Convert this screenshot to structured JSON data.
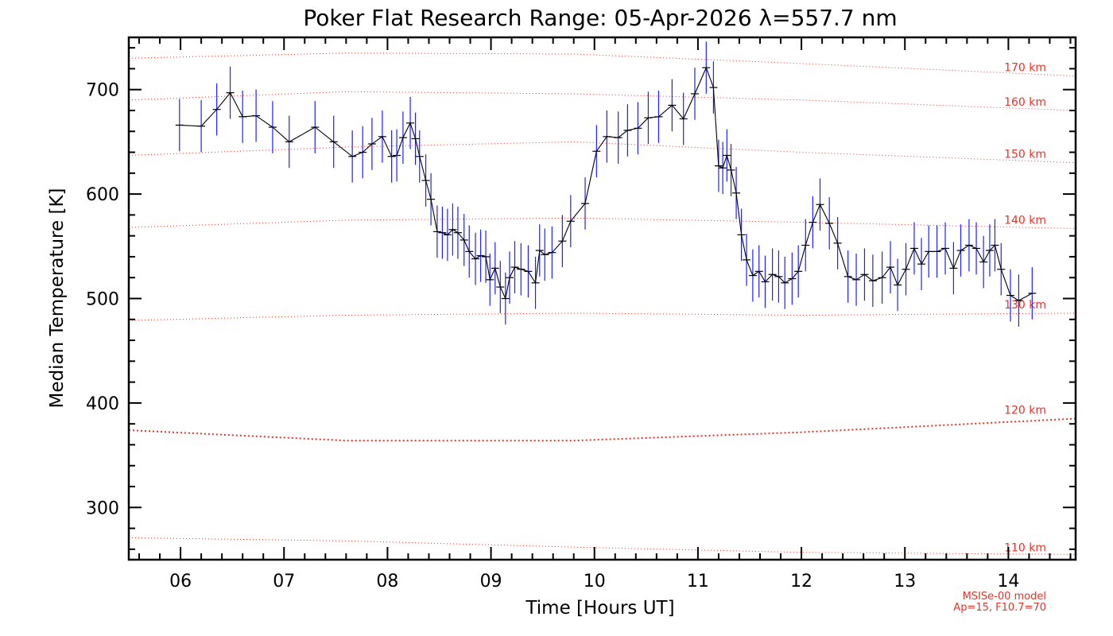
{
  "chart_data": {
    "type": "line",
    "title": "Poker Flat Research Range: 05-Apr-2026 λ=557.7 nm",
    "xlabel": "Time [Hours UT]",
    "ylabel": "Median Temperature [K]",
    "xlim": [
      5.5,
      14.65
    ],
    "ylim": [
      250,
      750
    ],
    "x_tick_labels": [
      "06",
      "07",
      "08",
      "09",
      "10",
      "11",
      "12",
      "13",
      "14"
    ],
    "x_ticks": [
      6,
      7,
      8,
      9,
      10,
      11,
      12,
      13,
      14
    ],
    "y_ticks": [
      300,
      400,
      500,
      600,
      700
    ],
    "grid": false,
    "colors": {
      "data_line": "#000000",
      "error_bars": "#1f1fff",
      "model_lines": "#e8332a",
      "axes": "#000000"
    },
    "series": [
      {
        "x": [
          5.99,
          6.2,
          6.35,
          6.48,
          6.6,
          6.73,
          6.89,
          7.05,
          7.3,
          7.48,
          7.66,
          7.76,
          7.85,
          7.95,
          8.04,
          8.09,
          8.15,
          8.22,
          8.27,
          8.31,
          8.37,
          8.42,
          8.48,
          8.53,
          8.58,
          8.63,
          8.68,
          8.74,
          8.79,
          8.85,
          8.9,
          8.95,
          8.99,
          9.04,
          9.09,
          9.14,
          9.18,
          9.23,
          9.29,
          9.36,
          9.43,
          9.47,
          9.52,
          9.59,
          9.69,
          9.77,
          9.91,
          10.02,
          10.12,
          10.23,
          10.32,
          10.42,
          10.52,
          10.62,
          10.75,
          10.86,
          10.97,
          11.08,
          11.15,
          11.2,
          11.24,
          11.28,
          11.32,
          11.37,
          11.42,
          11.47,
          11.53,
          11.59,
          11.65,
          11.72,
          11.78,
          11.84,
          11.91,
          11.97,
          12.04,
          12.11,
          12.18,
          12.27,
          12.35,
          12.45,
          12.53,
          12.61,
          12.69,
          12.78,
          12.86,
          12.93,
          13.01,
          13.09,
          13.16,
          13.23,
          13.31,
          13.39,
          13.47,
          13.54,
          13.62,
          13.69,
          13.76,
          13.82,
          13.87,
          13.93,
          14.02,
          14.1,
          14.23
        ],
        "y": [
          666,
          665,
          681,
          697,
          674,
          675,
          664,
          650,
          664,
          650,
          636,
          640,
          648,
          655,
          636,
          637,
          654,
          668,
          653,
          636,
          613,
          595,
          564,
          563,
          561,
          566,
          563,
          556,
          545,
          538,
          541,
          540,
          518,
          529,
          511,
          500,
          520,
          530,
          528,
          526,
          515,
          546,
          542,
          544,
          555,
          574,
          591,
          641,
          655,
          654,
          661,
          663,
          673,
          674,
          685,
          672,
          696,
          721,
          702,
          627,
          625,
          637,
          623,
          601,
          561,
          537,
          522,
          526,
          516,
          523,
          521,
          515,
          519,
          526,
          551,
          573,
          590,
          572,
          553,
          521,
          518,
          523,
          517,
          520,
          530,
          513,
          528,
          548,
          533,
          545,
          545,
          548,
          529,
          546,
          551,
          548,
          535,
          546,
          551,
          528,
          503,
          498,
          505
        ],
        "error": [
          25
        ]
      }
    ],
    "model": {
      "note_line1": "MSISe-00 model",
      "note_line2": "Ap=15, F10.7=70",
      "curves": [
        {
          "label": "110 km",
          "y": [
            271,
            268,
            262,
            257,
            255
          ],
          "style": "dotted-thin"
        },
        {
          "label": "120 km",
          "y": [
            374,
            364,
            364,
            372,
            385
          ],
          "style": "dotted-thick"
        },
        {
          "label": "130 km",
          "y": [
            479,
            484,
            486,
            484,
            486
          ],
          "style": "dotted-thin"
        },
        {
          "label": "140 km",
          "y": [
            568,
            575,
            577,
            573,
            567
          ],
          "style": "dotted-thin"
        },
        {
          "label": "150 km",
          "y": [
            637,
            645,
            650,
            640,
            630
          ],
          "style": "dotted-thin"
        },
        {
          "label": "160 km",
          "y": [
            690,
            698,
            696,
            690,
            680
          ],
          "style": "dotted-thin"
        },
        {
          "label": "170 km",
          "y": [
            730,
            735,
            734,
            725,
            713
          ],
          "style": "dotted-thin"
        }
      ],
      "curve_x": [
        5.5,
        7.6,
        9.8,
        12.0,
        14.65
      ]
    }
  }
}
